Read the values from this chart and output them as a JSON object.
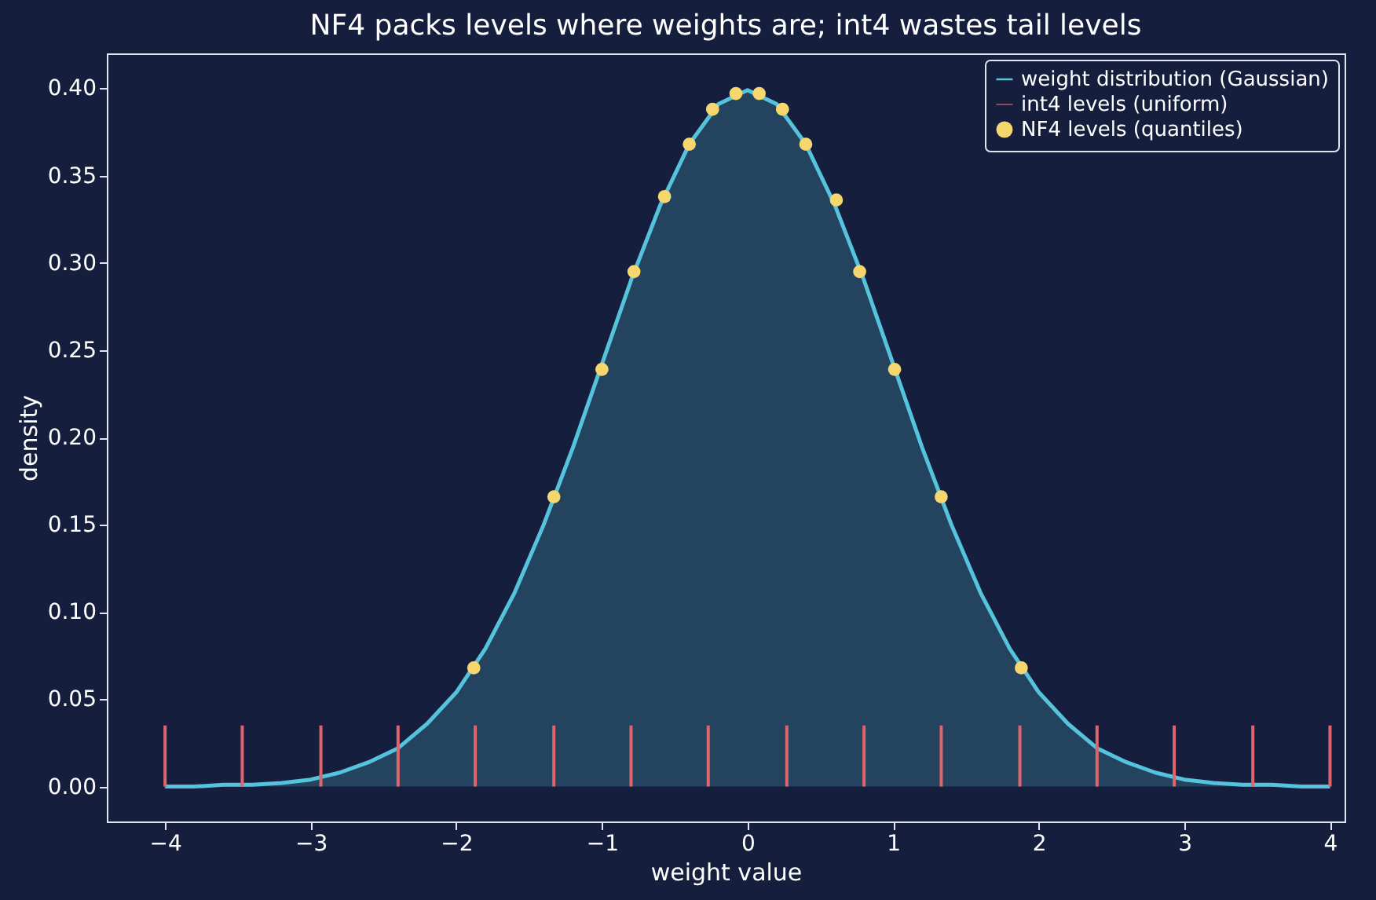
{
  "chart_data": {
    "type": "area",
    "title": "NF4 packs levels where weights are; int4 wastes tail levels",
    "xlabel": "weight value",
    "ylabel": "density",
    "xlim": [
      -4.4,
      4.1
    ],
    "ylim": [
      -0.02,
      0.42
    ],
    "xticks": [
      {
        "value": -4,
        "label": "−4"
      },
      {
        "value": -3,
        "label": "−3"
      },
      {
        "value": -2,
        "label": "−2"
      },
      {
        "value": -1,
        "label": "−1"
      },
      0,
      1,
      2,
      3,
      4
    ],
    "yticks": [
      {
        "value": 0,
        "label": "0.00"
      },
      {
        "value": 0.05,
        "label": "0.05"
      },
      {
        "value": 0.1,
        "label": "0.10"
      },
      {
        "value": 0.15,
        "label": "0.15"
      },
      {
        "value": 0.2,
        "label": "0.20"
      },
      {
        "value": 0.25,
        "label": "0.25"
      },
      {
        "value": 0.3,
        "label": "0.30"
      },
      {
        "value": 0.35,
        "label": "0.35"
      },
      {
        "value": 0.4,
        "label": "0.40"
      }
    ],
    "grid": false,
    "legend": "top right",
    "series": [
      {
        "name": "weight distribution (Gaussian)",
        "color": "#56c3dc",
        "x": [
          -4,
          -3.8,
          -3.6,
          -3.4,
          -3.2,
          -3,
          -2.8,
          -2.6,
          -2.4,
          -2.2,
          -2,
          -1.8,
          -1.6,
          -1.4,
          -1.2,
          -1,
          -0.8,
          -0.6,
          -0.4,
          -0.2,
          0,
          0.2,
          0.4,
          0.6,
          0.8,
          1,
          1.2,
          1.4,
          1.6,
          1.8,
          2,
          2.2,
          2.4,
          2.6,
          2.8,
          3,
          3.2,
          3.4,
          3.6,
          3.8,
          4
        ],
        "values": [
          0.0,
          0.0,
          0.001,
          0.001,
          0.002,
          0.004,
          0.008,
          0.014,
          0.022,
          0.036,
          0.054,
          0.079,
          0.111,
          0.15,
          0.194,
          0.242,
          0.29,
          0.333,
          0.368,
          0.391,
          0.399,
          0.391,
          0.368,
          0.333,
          0.29,
          0.242,
          0.194,
          0.15,
          0.111,
          0.079,
          0.054,
          0.036,
          0.022,
          0.014,
          0.008,
          0.004,
          0.002,
          0.001,
          0.001,
          0.0,
          0.0
        ]
      },
      {
        "name": "int4 levels (uniform)",
        "type": "bar",
        "color": "#e0646c",
        "x": [
          -4,
          -3.47,
          -2.93,
          -2.4,
          -1.87,
          -1.33,
          -0.8,
          -0.27,
          0.27,
          0.8,
          1.33,
          1.87,
          2.4,
          2.93,
          3.47,
          4
        ],
        "values": [
          0.035,
          0.035,
          0.035,
          0.035,
          0.035,
          0.035,
          0.035,
          0.035,
          0.035,
          0.035,
          0.035,
          0.035,
          0.035,
          0.035,
          0.035,
          0.035
        ]
      },
      {
        "name": "NF4 levels (quantiles)",
        "type": "scatter",
        "color": "#f5d76e",
        "marker": "circle",
        "x": [
          -1.88,
          -1.33,
          -1.0,
          -0.78,
          -0.57,
          -0.4,
          -0.24,
          -0.08,
          0.08,
          0.24,
          0.4,
          0.61,
          0.77,
          1.01,
          1.33,
          1.88
        ],
        "values": [
          0.068,
          0.166,
          0.239,
          0.295,
          0.338,
          0.368,
          0.388,
          0.397,
          0.397,
          0.388,
          0.368,
          0.336,
          0.295,
          0.239,
          0.166,
          0.068
        ]
      }
    ]
  }
}
